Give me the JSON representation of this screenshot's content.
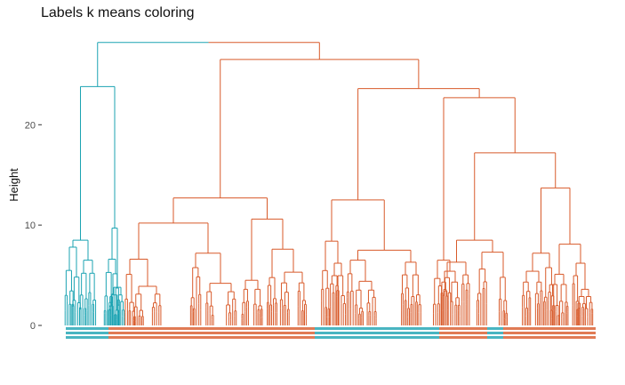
{
  "chart_data": {
    "type": "dendrogram",
    "title": "Labels k means coloring",
    "ylabel": "Height",
    "xlabel": "",
    "ylim": [
      0,
      28
    ],
    "yticks": [
      0,
      10,
      20
    ],
    "grid": false,
    "legend": "none",
    "colors": {
      "teal": "#1ba3b2",
      "orange": "#d85a2a"
    },
    "merges": [
      {
        "id": "root",
        "h": 28.2,
        "l": "T",
        "r": "O",
        "color": "teal-orange"
      },
      {
        "id": "T",
        "h": 23.8,
        "l": "T1",
        "r": "T2",
        "color": "teal"
      },
      {
        "id": "T1",
        "h": 8.5,
        "l": "T1a",
        "r": "T1b",
        "color": "teal"
      },
      {
        "id": "T1a",
        "h": 7.8,
        "l": "T1a1",
        "r": "T1a2",
        "color": "teal"
      },
      {
        "id": "T1b",
        "h": 6.5,
        "l": "T1b1",
        "r": "T1b2",
        "color": "teal"
      },
      {
        "id": "T2",
        "h": 9.7,
        "l": "T2a",
        "r": "T2b",
        "color": "teal"
      },
      {
        "id": "T2a",
        "h": 6.6,
        "l": "T2a1",
        "r": "T2a2",
        "color": "teal"
      },
      {
        "id": "T2b",
        "h": 3.8,
        "l": "T2b1",
        "r": "T2b2",
        "color": "teal"
      },
      {
        "id": "O",
        "h": 26.5,
        "l": "A",
        "r": "B",
        "color": "orange"
      },
      {
        "id": "A",
        "h": 12.7,
        "l": "A1",
        "r": "A2",
        "color": "orange"
      },
      {
        "id": "A1",
        "h": 10.2,
        "l": "A1a",
        "r": "A1b",
        "color": "orange"
      },
      {
        "id": "A1a",
        "h": 6.6,
        "l": "A1a1",
        "r": "A1a2",
        "color": "orange"
      },
      {
        "id": "A1a2",
        "h": 3.9,
        "l": "A1a2x",
        "r": "A1a2y",
        "color": "orange"
      },
      {
        "id": "A1b",
        "h": 7.2,
        "l": "A1b1",
        "r": "A1b2",
        "color": "orange"
      },
      {
        "id": "A1b2",
        "h": 4.2,
        "l": "A1b2x",
        "r": "A1b2y",
        "color": "orange"
      },
      {
        "id": "A2",
        "h": 10.6,
        "l": "A2a",
        "r": "A2b",
        "color": "orange"
      },
      {
        "id": "A2a",
        "h": 4.5,
        "l": "A2a1",
        "r": "A2a2",
        "color": "orange"
      },
      {
        "id": "A2b",
        "h": 7.6,
        "l": "A2b1",
        "r": "A2b2",
        "color": "orange"
      },
      {
        "id": "A2b2",
        "h": 5.3,
        "l": "A2b2x",
        "r": "A2b2y",
        "color": "orange"
      },
      {
        "id": "B",
        "h": 23.6,
        "l": "B1",
        "r": "B2",
        "color": "orange"
      },
      {
        "id": "B1",
        "h": 12.5,
        "l": "B1a",
        "r": "B1b",
        "color": "orange"
      },
      {
        "id": "B1a",
        "h": 8.4,
        "l": "B1a1",
        "r": "B1a2",
        "color": "orange"
      },
      {
        "id": "B1a2",
        "h": 6.2,
        "l": "B1a2x",
        "r": "B1a2y",
        "color": "orange"
      },
      {
        "id": "B1b",
        "h": 7.5,
        "l": "B1b1",
        "r": "B1b2",
        "color": "orange"
      },
      {
        "id": "B1b1",
        "h": 6.5,
        "l": "B1b1x",
        "r": "B1b1y",
        "color": "orange"
      },
      {
        "id": "B1b1y",
        "h": 4.4,
        "l": "B1b1y1",
        "r": "B1b1y2",
        "color": "orange"
      },
      {
        "id": "B1b2",
        "h": 6.3,
        "l": "B1b2x",
        "r": "B1b2y",
        "color": "orange"
      },
      {
        "id": "B2",
        "h": 22.7,
        "l": "C",
        "r": "D",
        "color": "orange"
      },
      {
        "id": "C",
        "h": 6.5,
        "l": "C1",
        "r": "C2",
        "color": "orange"
      },
      {
        "id": "C2",
        "h": 5.4,
        "l": "C2x",
        "r": "C2y",
        "color": "orange"
      },
      {
        "id": "D",
        "h": 17.2,
        "l": "D1",
        "r": "D2",
        "color": "orange"
      },
      {
        "id": "D1",
        "h": 8.5,
        "l": "D1a",
        "r": "D1b",
        "color": "orange"
      },
      {
        "id": "D1a",
        "h": 6.3,
        "l": "D1a1",
        "r": "D1a2",
        "color": "orange"
      },
      {
        "id": "D1b",
        "h": 7.3,
        "l": "D1b1",
        "r": "D1b2",
        "color": "orange"
      },
      {
        "id": "D2",
        "h": 13.7,
        "l": "D2a",
        "r": "D2b",
        "color": "orange"
      },
      {
        "id": "D2a",
        "h": 7.2,
        "l": "D2a1",
        "r": "D2a2",
        "color": "orange"
      },
      {
        "id": "D2a1",
        "h": 5.4,
        "l": "D2a1x",
        "r": "D2a1y",
        "color": "orange"
      },
      {
        "id": "D2b",
        "h": 8.1,
        "l": "D2b1",
        "r": "D2b2",
        "color": "orange"
      },
      {
        "id": "D2b1",
        "h": 5.1,
        "l": "D2b1x",
        "r": "D2b1y",
        "color": "orange"
      },
      {
        "id": "D2b2",
        "h": 6.2,
        "l": "D2b2x",
        "r": "D2b2y",
        "color": "orange"
      },
      {
        "id": "D2b2y",
        "h": 3.6,
        "l": "D2b2y1",
        "r": "D2b2y2",
        "color": "orange"
      }
    ]
  }
}
